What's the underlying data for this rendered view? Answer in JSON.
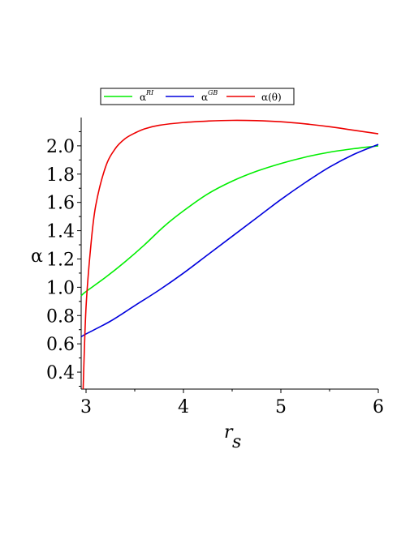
{
  "chart_data": {
    "type": "line",
    "title": "",
    "xlabel": "r",
    "xlabel_sub": "s",
    "ylabel": "α",
    "xlim": [
      2.95,
      6.0
    ],
    "ylim": [
      0.28,
      2.2
    ],
    "grid": false,
    "legend_position": "top",
    "x_ticks": [
      "3",
      "4",
      "5",
      "6"
    ],
    "y_ticks": [
      "0.4",
      "0.6",
      "0.8",
      "1.0",
      "1.2",
      "1.4",
      "1.6",
      "1.8",
      "2.0"
    ],
    "series": [
      {
        "name": "α",
        "name_sup": "RI",
        "color": "#00ee00",
        "x": [
          2.95,
          3.0,
          3.2,
          3.4,
          3.6,
          3.8,
          4.0,
          4.25,
          4.5,
          4.75,
          5.0,
          5.25,
          5.5,
          5.75,
          6.0
        ],
        "y": [
          0.94,
          0.97,
          1.07,
          1.18,
          1.3,
          1.43,
          1.54,
          1.66,
          1.75,
          1.82,
          1.875,
          1.92,
          1.955,
          1.98,
          2.0
        ]
      },
      {
        "name": "α",
        "name_sup": "GB",
        "color": "#0000dd",
        "x": [
          2.95,
          3.0,
          3.25,
          3.5,
          3.75,
          4.0,
          4.25,
          4.5,
          4.75,
          5.0,
          5.25,
          5.5,
          5.75,
          6.0
        ],
        "y": [
          0.65,
          0.67,
          0.76,
          0.87,
          0.98,
          1.1,
          1.23,
          1.36,
          1.49,
          1.62,
          1.74,
          1.85,
          1.94,
          2.01
        ]
      },
      {
        "name": "α(θ)",
        "color": "#ee0000",
        "x": [
          2.97,
          3.0,
          3.05,
          3.1,
          3.2,
          3.3,
          3.4,
          3.5,
          3.6,
          3.75,
          4.0,
          4.25,
          4.5,
          4.75,
          5.0,
          5.25,
          5.5,
          5.75,
          6.0
        ],
        "y": [
          0.28,
          0.86,
          1.3,
          1.58,
          1.85,
          1.98,
          2.05,
          2.09,
          2.12,
          2.145,
          2.165,
          2.175,
          2.18,
          2.178,
          2.17,
          2.155,
          2.135,
          2.11,
          2.085
        ]
      }
    ]
  }
}
